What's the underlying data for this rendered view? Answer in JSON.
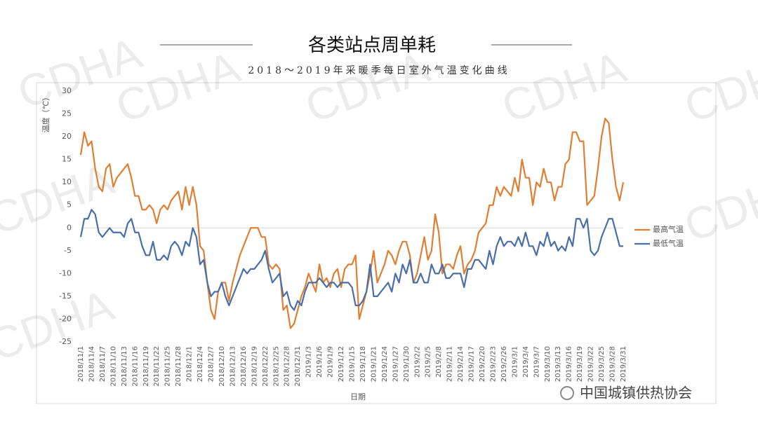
{
  "chart_data": {
    "type": "line",
    "title": "各类站点周单耗",
    "subtitle": "2018～2019年采暖季每日室外气温变化曲线",
    "y_label": "温度（℃）",
    "x_label": "日期",
    "watermark": "CDHA",
    "source": "中国城镇供热协会",
    "ylim": [
      -25,
      30
    ],
    "yticks": [
      -25,
      -20,
      -15,
      -10,
      -5,
      0,
      5,
      10,
      15,
      20,
      25,
      30
    ],
    "grid": false,
    "legend": "right",
    "categories": [
      "2018/11/1",
      null,
      null,
      "2018/11/4",
      null,
      null,
      "2018/11/7",
      null,
      null,
      "2018/11/10",
      null,
      null,
      "2018/11/13",
      null,
      null,
      "2018/11/16",
      null,
      null,
      "2018/11/19",
      null,
      null,
      "2018/11/22",
      null,
      null,
      "2018/11/25",
      null,
      null,
      "2018/11/28",
      null,
      null,
      "2018/12/1",
      null,
      null,
      "2018/12/4",
      null,
      null,
      "2018/12/7",
      null,
      null,
      "2018/12/10",
      null,
      null,
      "2018/12/13",
      null,
      null,
      "2018/12/16",
      null,
      null,
      "2018/12/19",
      null,
      null,
      "2018/12/22",
      null,
      null,
      "2018/12/25",
      null,
      null,
      "2018/12/28",
      null,
      null,
      "2018/12/31",
      null,
      null,
      "2019/1/3",
      null,
      null,
      "2019/1/6",
      null,
      null,
      "2019/1/9",
      null,
      null,
      "2019/1/12",
      null,
      null,
      "2019/1/15",
      null,
      null,
      "2019/1/18",
      null,
      null,
      "2019/1/21",
      null,
      null,
      "2019/1/24",
      null,
      null,
      "2019/1/27",
      null,
      null,
      "2019/1/30",
      null,
      null,
      "2019/2/2",
      null,
      null,
      "2019/2/5",
      null,
      null,
      "2019/2/8",
      null,
      null,
      "2019/2/11",
      null,
      null,
      "2019/2/14",
      null,
      null,
      "2019/2/17",
      null,
      null,
      "2019/2/20",
      null,
      null,
      "2019/2/23",
      null,
      null,
      "2019/2/26",
      null,
      null,
      "2019/3/1",
      null,
      null,
      "2019/3/4",
      null,
      null,
      "2019/3/7",
      null,
      null,
      "2019/3/10",
      null,
      null,
      "2019/3/13",
      null,
      null,
      "2019/3/16",
      null,
      null,
      "2019/3/19",
      null,
      null,
      "2019/3/22",
      null,
      null,
      "2019/3/25",
      null,
      null,
      "2019/3/28",
      null,
      null,
      "2019/3/31"
    ],
    "series": [
      {
        "name": "最高气温",
        "color": "#e07f33",
        "values": [
          16,
          21,
          18,
          19,
          13,
          9,
          8,
          13,
          14,
          9,
          11,
          12,
          13,
          14,
          11,
          7,
          7,
          4,
          4,
          5,
          4,
          1,
          4,
          5,
          4,
          6,
          7,
          8,
          4,
          9,
          5,
          9,
          5,
          -4,
          -5,
          -12,
          -18,
          -20,
          -14,
          -12,
          -12,
          -16,
          -12,
          -9,
          -6,
          -4,
          -2,
          0,
          0,
          0,
          -2,
          -2,
          -8,
          -9,
          -8,
          -9,
          -18,
          -17,
          -22,
          -21,
          -18,
          -15,
          -13,
          -10,
          -12,
          -14,
          -8,
          -12,
          -11,
          -13,
          -10,
          -9,
          -13,
          -9,
          -8,
          -8,
          -6,
          -20,
          -17,
          -14,
          -10,
          -5,
          -12,
          -10,
          -8,
          -5,
          -6,
          -8,
          -5,
          -3,
          -3,
          -6,
          -12,
          -10,
          -6,
          -2,
          -7,
          -5,
          3,
          -1,
          -10,
          -8,
          -8,
          -9,
          -6,
          -4,
          -10,
          -8,
          -7,
          -5,
          -1,
          0,
          1,
          5,
          5,
          9,
          7,
          9,
          8,
          7,
          11,
          8,
          15,
          11,
          11,
          5,
          10,
          9,
          13,
          10,
          10,
          6,
          9,
          9,
          14,
          15,
          21,
          21,
          19,
          19,
          5,
          6,
          7,
          13,
          20,
          24,
          23,
          15,
          9,
          6,
          10
        ]
      },
      {
        "name": "最低气温",
        "color": "#4a6fa8",
        "values": [
          -2,
          2,
          2,
          4,
          3,
          -1,
          -2,
          -1,
          0,
          -1,
          -1,
          -1,
          -2,
          1,
          2,
          -1,
          -1,
          -4,
          -6,
          -6,
          -3,
          -7,
          -7,
          -6,
          -7,
          -4,
          -3,
          -4,
          -6,
          -3,
          -4,
          0,
          -2,
          -8,
          -7,
          -12,
          -15,
          -14,
          -14,
          -12,
          -15,
          -17,
          -15,
          -13,
          -11,
          -9,
          -10,
          -9,
          -9,
          -8,
          -7,
          -5,
          -9,
          -12,
          -11,
          -10,
          -15,
          -14,
          -17,
          -18,
          -16,
          -17,
          -14,
          -12,
          -12,
          -12,
          -11,
          -12,
          -13,
          -12,
          -12,
          -13,
          -12,
          -12,
          -12,
          -13,
          -17,
          -17,
          -16,
          -14,
          -8,
          -15,
          -15,
          -14,
          -13,
          -12,
          -14,
          -10,
          -12,
          -8,
          -10,
          -7,
          -12,
          -12,
          -10,
          -12,
          -12,
          -8,
          -10,
          -10,
          -8,
          -11,
          -11,
          -10,
          -10,
          -10,
          -13,
          -9,
          -9,
          -7,
          -7,
          -8,
          -9,
          -5,
          -8,
          -4,
          -2,
          -4,
          -3,
          -3,
          -4,
          -2,
          -4,
          -1,
          -4,
          -4,
          -6,
          -3,
          -4,
          -1,
          -4,
          -3,
          -5,
          -4,
          -5,
          -2,
          -4,
          2,
          2,
          0,
          2,
          -5,
          -6,
          -5,
          -2,
          0,
          2,
          2,
          -1,
          -4,
          -4
        ]
      }
    ]
  }
}
